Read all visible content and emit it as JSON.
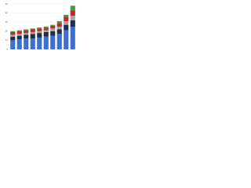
{
  "chart_data": {
    "type": "stacked_bar",
    "categories": [
      null,
      null,
      null,
      null,
      null,
      null,
      null,
      null,
      null,
      null
    ],
    "series": [
      {
        "color": "#3d6fd0",
        "values": [
          10,
          11,
          12,
          12,
          13,
          14,
          15,
          17,
          21,
          25
        ]
      },
      {
        "color": "#1c2e4a",
        "values": [
          4,
          4,
          4,
          5,
          5,
          5,
          5,
          5,
          6,
          7
        ]
      },
      {
        "color": "#a5a5a5",
        "values": [
          2,
          2,
          2,
          2,
          2,
          2,
          3,
          3,
          4,
          5
        ]
      },
      {
        "color": "#c0282d",
        "values": [
          3,
          3,
          3,
          3,
          3,
          3,
          3,
          4,
          5,
          6
        ]
      },
      {
        "color": "#3e9e3a",
        "values": [
          1,
          1,
          1,
          1,
          1,
          1,
          1,
          2,
          2,
          5
        ]
      }
    ],
    "ylim": [
      0,
      50
    ],
    "yticks": [
      0,
      10,
      20,
      30,
      40,
      50
    ],
    "grid": true
  }
}
